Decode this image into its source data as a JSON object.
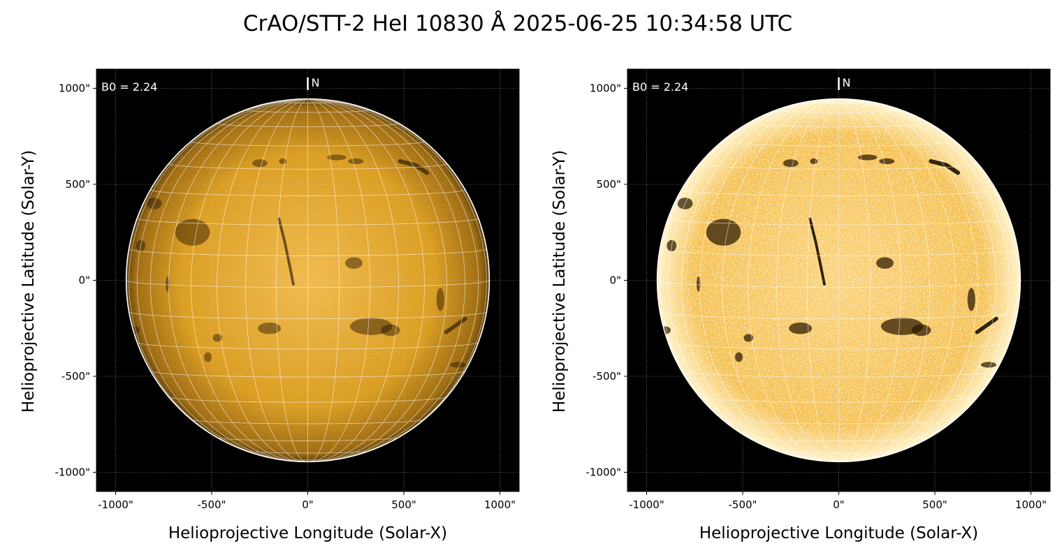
{
  "title": "CrAO/STT-2 HeI 10830 Å 2025-06-25 10:34:58 UTC",
  "chart_data": [
    {
      "type": "heatmap",
      "name": "left-panel",
      "description_variant": "linear scaling",
      "xlabel": "Helioprojective Longitude (Solar-X)",
      "ylabel": "Helioprojective Latitude (Solar-Y)",
      "xlim": [
        -1100,
        1100
      ],
      "ylim": [
        -1100,
        1100
      ],
      "xticks": [
        -1000,
        -500,
        0,
        500,
        1000
      ],
      "xtick_labels": [
        "-1000\"",
        "-500\"",
        "0\"",
        "500\"",
        "1000\""
      ],
      "yticks": [
        1000,
        500,
        0,
        -500,
        -1000
      ],
      "ytick_labels": [
        "1000\"",
        "500\"",
        "0\"",
        "-500\"",
        "-1000\""
      ],
      "grid": true,
      "solar_radius_arcsec": 945,
      "heliographic_grid_spacing_deg": 10,
      "b0_label": "B0 = 2.24",
      "b0_deg": 2.24,
      "north_label": "N",
      "colormap": [
        "#000000",
        "#8a5a00",
        "#e0a000",
        "#ffe6a0"
      ],
      "contrast": 1.0
    },
    {
      "type": "heatmap",
      "name": "right-panel",
      "xlabel": "Helioprojective Longitude (Solar-X)",
      "ylabel": "Helioprojective Latitude (Solar-Y)",
      "xlim": [
        -1100,
        1100
      ],
      "ylim": [
        -1100,
        1100
      ],
      "xticks": [
        -1000,
        -500,
        0,
        500,
        1000
      ],
      "xtick_labels": [
        "-1000\"",
        "-500\"",
        "0\"",
        "500\"",
        "1000\""
      ],
      "yticks": [
        1000,
        500,
        0,
        -500,
        -1000
      ],
      "ytick_labels": [
        "1000\"",
        "500\"",
        "0\"",
        "-500\"",
        "-1000\""
      ],
      "grid": true,
      "solar_radius_arcsec": 945,
      "heliographic_grid_spacing_deg": 10,
      "b0_label": "B0 = 2.24",
      "b0_deg": 2.24,
      "north_label": "N",
      "colormap": [
        "#000000",
        "#8a5a00",
        "#e0a000",
        "#ffffff"
      ],
      "contrast": 2.0
    }
  ]
}
